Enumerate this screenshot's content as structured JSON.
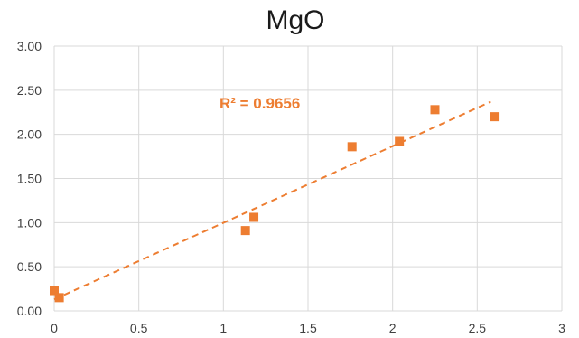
{
  "chart_data": {
    "type": "scatter",
    "title": "MgO",
    "xlabel": "",
    "ylabel": "",
    "xlim": [
      0,
      3
    ],
    "ylim": [
      0,
      3
    ],
    "x_ticks": [
      "0",
      "0.5",
      "1",
      "1.5",
      "2",
      "2.5",
      "3"
    ],
    "y_ticks": [
      "0.00",
      "0.50",
      "1.00",
      "1.50",
      "2.00",
      "2.50",
      "3.00"
    ],
    "grid": true,
    "legend": "none",
    "series": [
      {
        "color": "#ED7D31",
        "marker": "square",
        "points": [
          {
            "x": 0.0,
            "y": 0.23
          },
          {
            "x": 0.03,
            "y": 0.15
          },
          {
            "x": 1.13,
            "y": 0.91
          },
          {
            "x": 1.18,
            "y": 1.06
          },
          {
            "x": 1.76,
            "y": 1.86
          },
          {
            "x": 2.04,
            "y": 1.92
          },
          {
            "x": 2.25,
            "y": 2.28
          },
          {
            "x": 2.6,
            "y": 2.2
          }
        ]
      }
    ],
    "trendline": {
      "type": "linear",
      "color": "#ED7D31",
      "style": "dashed",
      "start": {
        "x": 0.0,
        "y": 0.13
      },
      "end": {
        "x": 2.58,
        "y": 2.37
      }
    },
    "annotation": "R² = 0.9656"
  }
}
